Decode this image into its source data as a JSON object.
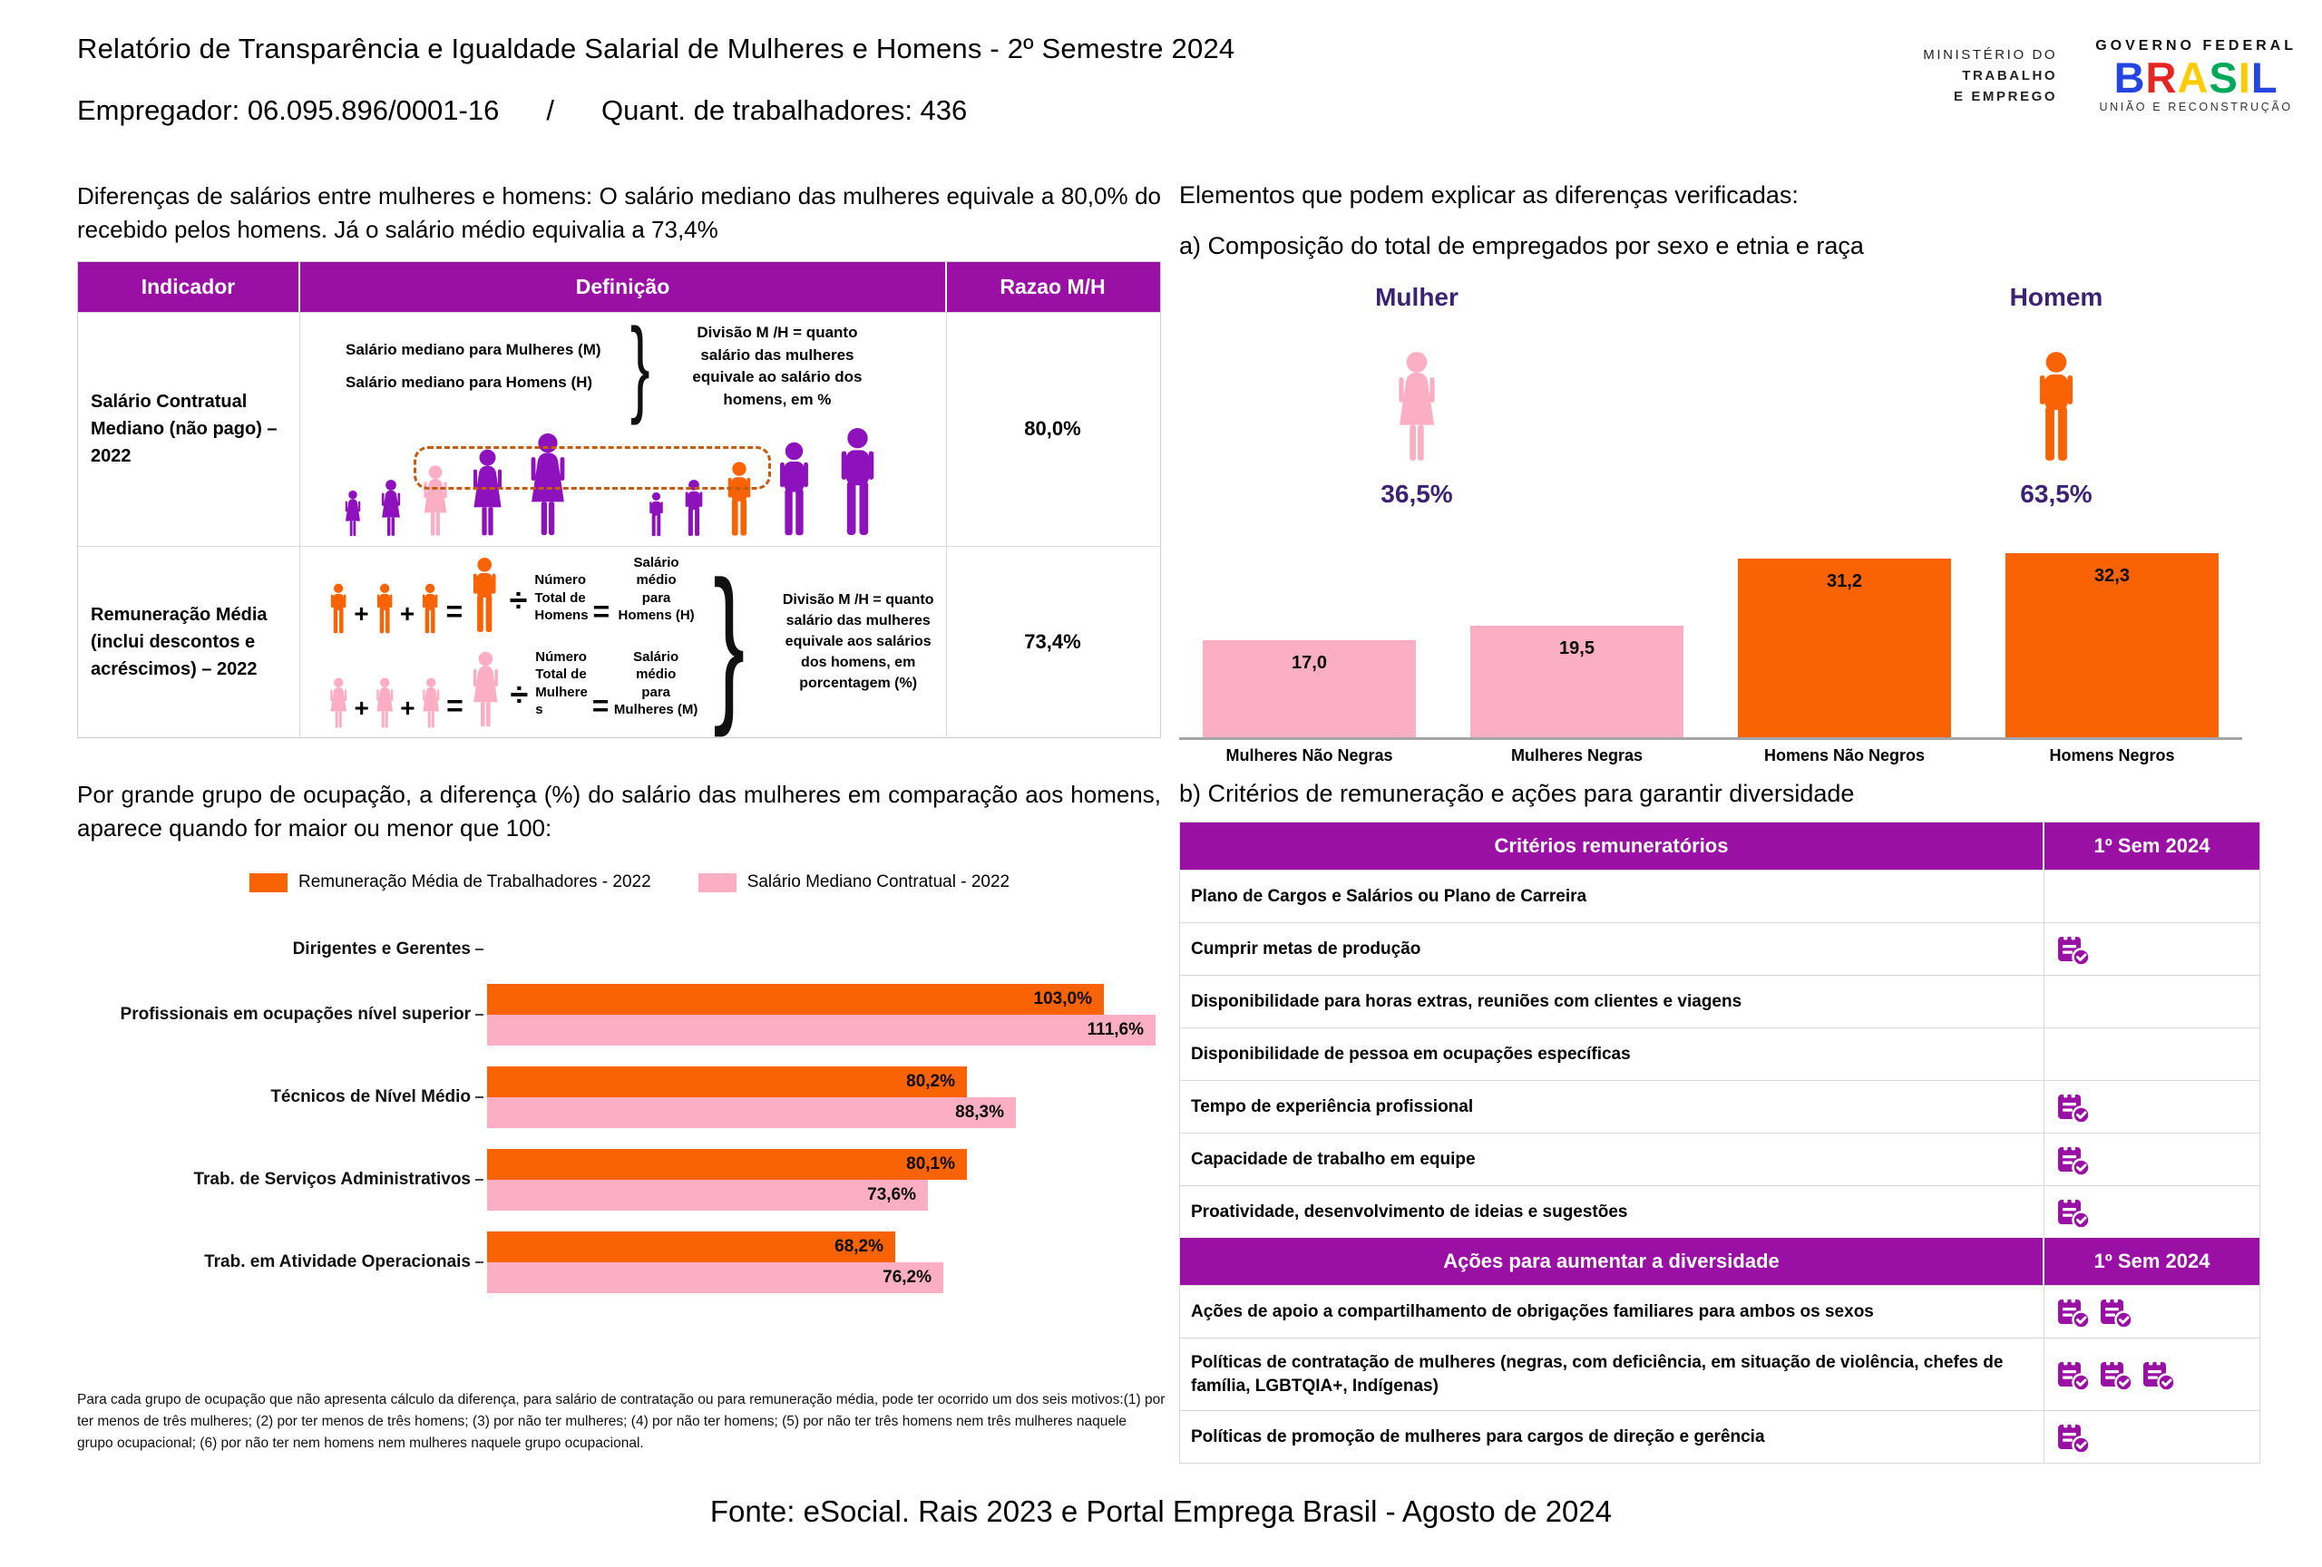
{
  "colors": {
    "purple_header": "#9A10A5",
    "figure_purple": "#8E11BE",
    "pink": "#FBAEC4",
    "orange": "#F96304",
    "dark_purple": "#3B2272",
    "dash_orange": "#C55A11",
    "axis_gray": "#A6A6A6"
  },
  "header": {
    "title": "Relatório de Transparência e Igualdade Salarial de Mulheres e Homens - 2º Semestre 2024",
    "employer": "Empregador: 06.095.896/0001-16",
    "separator": "/",
    "workers": "Quant. de trabalhadores: 436",
    "ministry_lines": [
      "MINISTÉRIO DO",
      "TRABALHO",
      "E EMPREGO"
    ],
    "gov_logo": {
      "top": "GOVERNO FEDERAL",
      "brand_letters": [
        {
          "ch": "B",
          "color": "#2546DE"
        },
        {
          "ch": "R",
          "color": "#E52521"
        },
        {
          "ch": "A",
          "color": "#FFCC00"
        },
        {
          "ch": "S",
          "color": "#00A859"
        },
        {
          "ch": "I",
          "color": "#FFCC00"
        },
        {
          "ch": "L",
          "color": "#2546DE"
        }
      ],
      "bottom": "UNIÃO E RECONSTRUÇÃO"
    }
  },
  "left": {
    "intro": "Diferenças de salários entre mulheres e homens: O salário mediano das mulheres equivale a 80,0% do recebido pelos homens. Já o salário médio equivalia a 73,4%",
    "table": {
      "headers": [
        "Indicador",
        "Definição",
        "Razao M/H"
      ],
      "row1": {
        "indicator": "Salário Contratual Mediano (não pago) – 2022",
        "line_women": "Salário mediano para Mulheres (M)",
        "line_men": "Salário mediano para Homens (H)",
        "note": "Divisão M /H = quanto salário das mulheres equivale ao salário dos homens, em %",
        "ratio": "80,0%"
      },
      "row2": {
        "indicator": "Remuneração Média (inclui descontos e acréscimos) – 2022",
        "men": {
          "divide": [
            "Número",
            "Total de",
            "Homens"
          ],
          "result": [
            "Salário médio",
            "para",
            "Homens (H)"
          ]
        },
        "women": {
          "divide": [
            "Número",
            "Total de",
            "Mulhere",
            "s"
          ],
          "result": [
            "Salário médio",
            "para",
            "Mulheres (M)"
          ]
        },
        "note": "Divisão M /H = quanto salário das mulheres equivale aos salários dos homens, em porcentagem (%)",
        "ratio": "73,4%"
      }
    },
    "occupation_intro": "Por grande grupo de ocupação, a diferença (%) do salário das mulheres em comparação aos homens, aparece quando for maior ou menor que 100:",
    "footnote": "Para cada grupo de ocupação que não apresenta cálculo da diferença, para salário de contratação ou para remuneração média, pode ter ocorrido um dos seis motivos:(1) por ter menos de três mulheres; (2) por ter menos de três homens; (3) por não ter mulheres; (4) por não ter homens; (5) por não ter três homens nem três mulheres naquele grupo ocupacional; (6) por não ter nem homens nem mulheres naquele grupo ocupacional."
  },
  "right": {
    "elements_title": "Elementos que podem explicar as diferenças verificadas:",
    "a_title": "a) Composição do total de empregados por sexo e etnia e raça",
    "gender": {
      "woman_label": "Mulher",
      "woman_pct": "36,5%",
      "man_label": "Homem",
      "man_pct": "63,5%"
    },
    "b_title": "b) Critérios de remuneração e ações para garantir diversidade",
    "criteria_sections": [
      {
        "header": [
          "Critérios remuneratórios",
          "1º Sem 2024"
        ],
        "rows": [
          {
            "label": "Plano de Cargos e Salários ou Plano de Carreira",
            "checks": 0
          },
          {
            "label": "Cumprir metas de produção",
            "checks": 1
          },
          {
            "label": "Disponibilidade para horas extras, reuniões com clientes e viagens",
            "checks": 0
          },
          {
            "label": "Disponibilidade de pessoa em ocupações específicas",
            "checks": 0
          },
          {
            "label": "Tempo de experiência profissional",
            "checks": 1
          },
          {
            "label": "Capacidade de trabalho em equipe",
            "checks": 1
          },
          {
            "label": "Proatividade, desenvolvimento de ideias e sugestões",
            "checks": 1
          }
        ]
      },
      {
        "header": [
          "Ações para aumentar a diversidade",
          "1º Sem 2024"
        ],
        "rows": [
          {
            "label": "Ações de apoio a compartilhamento de obrigações familiares para ambos os sexos",
            "checks": 2
          },
          {
            "label": "Políticas de contratação de mulheres (negras, com deficiência, em situação de violência, chefes de família, LGBTQIA+, Indígenas)",
            "checks": 3
          },
          {
            "label": "Políticas de promoção de mulheres para cargos de direção e gerência",
            "checks": 1
          }
        ]
      }
    ]
  },
  "legend": [
    {
      "label": "Remuneração Média de Trabalhadores - 2022",
      "color": "#F96304"
    },
    {
      "label": "Salário Mediano Contratual - 2022",
      "color": "#FBAEC4"
    }
  ],
  "chart_data": [
    {
      "type": "bar",
      "title": "a) Composição do total de empregados por sexo e etnia e raça",
      "categories": [
        "Mulheres Não Negras",
        "Mulheres Negras",
        "Homens Não Negros",
        "Homens Negros"
      ],
      "values": [
        17.0,
        19.5,
        31.2,
        32.3
      ],
      "labels": [
        "17,0",
        "19,5",
        "31,2",
        "32,3"
      ],
      "bar_colors": [
        "#FBAEC4",
        "#FBAEC4",
        "#F96304",
        "#F96304"
      ],
      "unit": "% of employees",
      "ylim": [
        0,
        35
      ],
      "grid": false,
      "data_labels": "inside-top",
      "legend_position": "none"
    },
    {
      "type": "bar-horizontal",
      "title": "Diferença (%) do salário das mulheres em comparação aos homens por grande grupo de ocupação",
      "categories": [
        "Dirigentes e Gerentes",
        "Profissionais em ocupações nível superior",
        "Técnicos de Nível Médio",
        "Trab. de Serviços Administrativos",
        "Trab. em Atividade Operacionais"
      ],
      "series": [
        {
          "name": "Remuneração Média de Trabalhadores - 2022",
          "color": "#F96304",
          "values": [
            null,
            103.0,
            80.2,
            80.1,
            68.2
          ],
          "labels": [
            "",
            "103,0%",
            "80,2%",
            "80,1%",
            "68,2%"
          ]
        },
        {
          "name": "Salário Mediano Contratual - 2022",
          "color": "#FBAEC4",
          "values": [
            null,
            111.6,
            88.3,
            73.6,
            76.2
          ],
          "labels": [
            "",
            "111,6%",
            "88,3%",
            "73,6%",
            "76,2%"
          ]
        }
      ],
      "xlim": [
        0,
        116
      ],
      "grid": false,
      "data_labels": "inside-end",
      "legend_position": "top"
    }
  ],
  "illustration": {
    "women_heights": [
      52,
      64,
      80,
      98,
      116
    ],
    "men_heights": [
      50,
      64,
      84,
      106,
      122
    ],
    "woman_highlight_index": 2,
    "man_highlight_index": 2
  },
  "footer": "Fonte: eSocial. Rais 2023 e Portal Emprega Brasil - Agosto de 2024"
}
